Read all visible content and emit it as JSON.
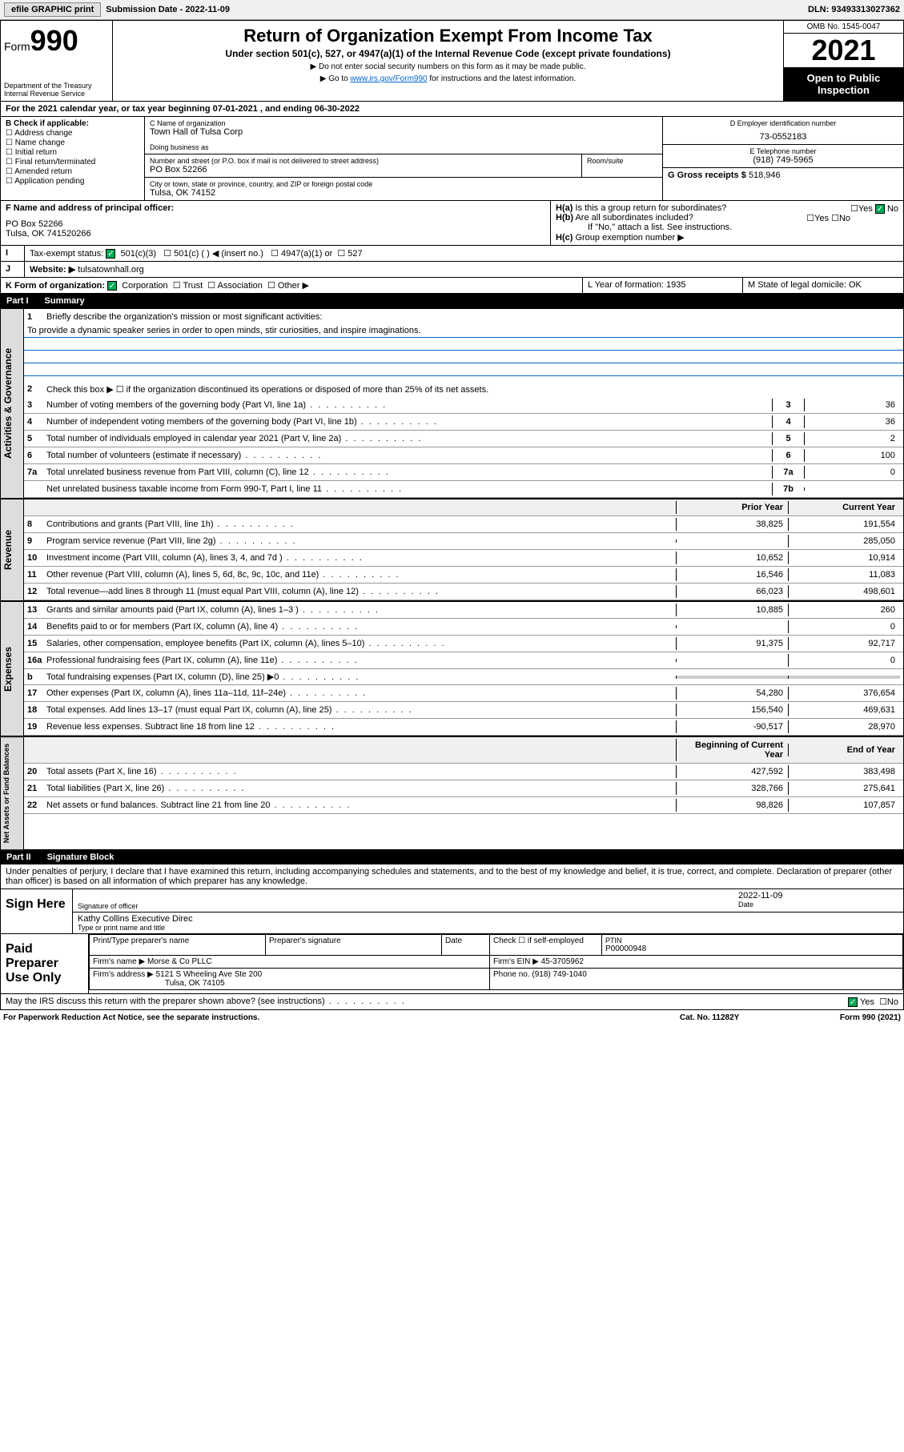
{
  "topbar": {
    "efile": "efile GRAPHIC print",
    "subdate_lbl": "Submission Date - 2022-11-09",
    "dln": "DLN: 93493313027362"
  },
  "header": {
    "form_word": "Form",
    "form_num": "990",
    "dept": "Department of the Treasury",
    "irs": "Internal Revenue Service",
    "title": "Return of Organization Exempt From Income Tax",
    "subtitle": "Under section 501(c), 527, or 4947(a)(1) of the Internal Revenue Code (except private foundations)",
    "note1": "▶ Do not enter social security numbers on this form as it may be made public.",
    "note2_pre": "▶ Go to ",
    "note2_link": "www.irs.gov/Form990",
    "note2_post": " for instructions and the latest information.",
    "omb": "OMB No. 1545-0047",
    "year": "2021",
    "open": "Open to Public Inspection"
  },
  "A": {
    "text": "For the 2021 calendar year, or tax year beginning 07-01-2021  , and ending 06-30-2022"
  },
  "B": {
    "lbl": "B Check if applicable:",
    "items": [
      "Address change",
      "Name change",
      "Initial return",
      "Final return/terminated",
      "Amended return",
      "Application pending"
    ]
  },
  "C": {
    "name_lbl": "C Name of organization",
    "name": "Town Hall of Tulsa Corp",
    "dba_lbl": "Doing business as",
    "addr_lbl": "Number and street (or P.O. box if mail is not delivered to street address)",
    "room_lbl": "Room/suite",
    "addr": "PO Box 52266",
    "city_lbl": "City or town, state or province, country, and ZIP or foreign postal code",
    "city": "Tulsa, OK  74152"
  },
  "D": {
    "lbl": "D Employer identification number",
    "val": "73-0552183"
  },
  "E": {
    "lbl": "E Telephone number",
    "val": "(918) 749-5965"
  },
  "G": {
    "lbl": "G Gross receipts $",
    "val": "518,946"
  },
  "F": {
    "lbl": "F  Name and address of principal officer:",
    "l1": "PO Box 52266",
    "l2": "Tulsa, OK  741520266"
  },
  "H": {
    "a": "Is this a group return for subordinates?",
    "b": "Are all subordinates included?",
    "b2": "If \"No,\" attach a list. See instructions.",
    "c": "Group exemption number ▶"
  },
  "I": {
    "lbl": "Tax-exempt status:",
    "opt1": "501(c)(3)",
    "opt2": "501(c) (  ) ◀ (insert no.)",
    "opt3": "4947(a)(1) or",
    "opt4": "527"
  },
  "J": {
    "lbl": "Website: ▶",
    "val": "tulsatownhall.org"
  },
  "K": {
    "lbl": "K Form of organization:",
    "opts": [
      "Corporation",
      "Trust",
      "Association",
      "Other ▶"
    ]
  },
  "L": {
    "lbl": "L Year of formation: 1935"
  },
  "M": {
    "lbl": "M State of legal domicile: OK"
  },
  "part1": {
    "num": "Part I",
    "title": "Summary"
  },
  "summary": {
    "l1": "Briefly describe the organization's mission or most significant activities:",
    "mission": "To provide a dynamic speaker series in order to open minds, stir curiosities, and inspire imaginations.",
    "l2": "Check this box ▶ ☐  if the organization discontinued its operations or disposed of more than 25% of its net assets.",
    "lines_gov": [
      {
        "n": "3",
        "t": "Number of voting members of the governing body (Part VI, line 1a)",
        "b": "3",
        "v": "36"
      },
      {
        "n": "4",
        "t": "Number of independent voting members of the governing body (Part VI, line 1b)",
        "b": "4",
        "v": "36"
      },
      {
        "n": "5",
        "t": "Total number of individuals employed in calendar year 2021 (Part V, line 2a)",
        "b": "5",
        "v": "2"
      },
      {
        "n": "6",
        "t": "Total number of volunteers (estimate if necessary)",
        "b": "6",
        "v": "100"
      },
      {
        "n": "7a",
        "t": "Total unrelated business revenue from Part VIII, column (C), line 12",
        "b": "7a",
        "v": "0"
      },
      {
        "n": "",
        "t": "Net unrelated business taxable income from Form 990-T, Part I, line 11",
        "b": "7b",
        "v": ""
      }
    ],
    "col_prior": "Prior Year",
    "col_curr": "Current Year",
    "rev": [
      {
        "n": "8",
        "t": "Contributions and grants (Part VIII, line 1h)",
        "p": "38,825",
        "c": "191,554"
      },
      {
        "n": "9",
        "t": "Program service revenue (Part VIII, line 2g)",
        "p": "",
        "c": "285,050"
      },
      {
        "n": "10",
        "t": "Investment income (Part VIII, column (A), lines 3, 4, and 7d )",
        "p": "10,652",
        "c": "10,914"
      },
      {
        "n": "11",
        "t": "Other revenue (Part VIII, column (A), lines 5, 6d, 8c, 9c, 10c, and 11e)",
        "p": "16,546",
        "c": "11,083"
      },
      {
        "n": "12",
        "t": "Total revenue—add lines 8 through 11 (must equal Part VIII, column (A), line 12)",
        "p": "66,023",
        "c": "498,601"
      }
    ],
    "exp": [
      {
        "n": "13",
        "t": "Grants and similar amounts paid (Part IX, column (A), lines 1–3 )",
        "p": "10,885",
        "c": "260"
      },
      {
        "n": "14",
        "t": "Benefits paid to or for members (Part IX, column (A), line 4)",
        "p": "",
        "c": "0"
      },
      {
        "n": "15",
        "t": "Salaries, other compensation, employee benefits (Part IX, column (A), lines 5–10)",
        "p": "91,375",
        "c": "92,717"
      },
      {
        "n": "16a",
        "t": "Professional fundraising fees (Part IX, column (A), line 11e)",
        "p": "",
        "c": "0"
      },
      {
        "n": "b",
        "t": "Total fundraising expenses (Part IX, column (D), line 25) ▶0",
        "p": "",
        "c": "",
        "shade": true
      },
      {
        "n": "17",
        "t": "Other expenses (Part IX, column (A), lines 11a–11d, 11f–24e)",
        "p": "54,280",
        "c": "376,654"
      },
      {
        "n": "18",
        "t": "Total expenses. Add lines 13–17 (must equal Part IX, column (A), line 25)",
        "p": "156,540",
        "c": "469,631"
      },
      {
        "n": "19",
        "t": "Revenue less expenses. Subtract line 18 from line 12",
        "p": "-90,517",
        "c": "28,970"
      }
    ],
    "col_beg": "Beginning of Current Year",
    "col_end": "End of Year",
    "net": [
      {
        "n": "20",
        "t": "Total assets (Part X, line 16)",
        "p": "427,592",
        "c": "383,498"
      },
      {
        "n": "21",
        "t": "Total liabilities (Part X, line 26)",
        "p": "328,766",
        "c": "275,641"
      },
      {
        "n": "22",
        "t": "Net assets or fund balances. Subtract line 21 from line 20",
        "p": "98,826",
        "c": "107,857"
      }
    ]
  },
  "vtabs": {
    "gov": "Activities & Governance",
    "rev": "Revenue",
    "exp": "Expenses",
    "net": "Net Assets or Fund Balances"
  },
  "part2": {
    "num": "Part II",
    "title": "Signature Block"
  },
  "sig": {
    "decl": "Under penalties of perjury, I declare that I have examined this return, including accompanying schedules and statements, and to the best of my knowledge and belief, it is true, correct, and complete. Declaration of preparer (other than officer) is based on all information of which preparer has any knowledge.",
    "here": "Sign Here",
    "sigoff": "Signature of officer",
    "date_lbl": "Date",
    "date": "2022-11-09",
    "name": "Kathy Collins  Executive Direc",
    "name_lbl": "Type or print name and title",
    "paid": "Paid Preparer Use Only",
    "pp_name_lbl": "Print/Type preparer's name",
    "pp_sig_lbl": "Preparer's signature",
    "pp_check": "Check ☐ if self-employed",
    "ptin_lbl": "PTIN",
    "ptin": "P00000948",
    "firm_lbl": "Firm's name   ▶",
    "firm": "Morse & Co PLLC",
    "ein_lbl": "Firm's EIN ▶",
    "ein": "45-3705962",
    "addr_lbl": "Firm's address ▶",
    "addr1": "5121 S Wheeling Ave Ste 200",
    "addr2": "Tulsa, OK  74105",
    "phone_lbl": "Phone no.",
    "phone": "(918) 749-1040",
    "discuss": "May the IRS discuss this return with the preparer shown above? (see instructions)"
  },
  "footer": {
    "pra": "For Paperwork Reduction Act Notice, see the separate instructions.",
    "cat": "Cat. No. 11282Y",
    "form": "Form 990 (2021)"
  }
}
